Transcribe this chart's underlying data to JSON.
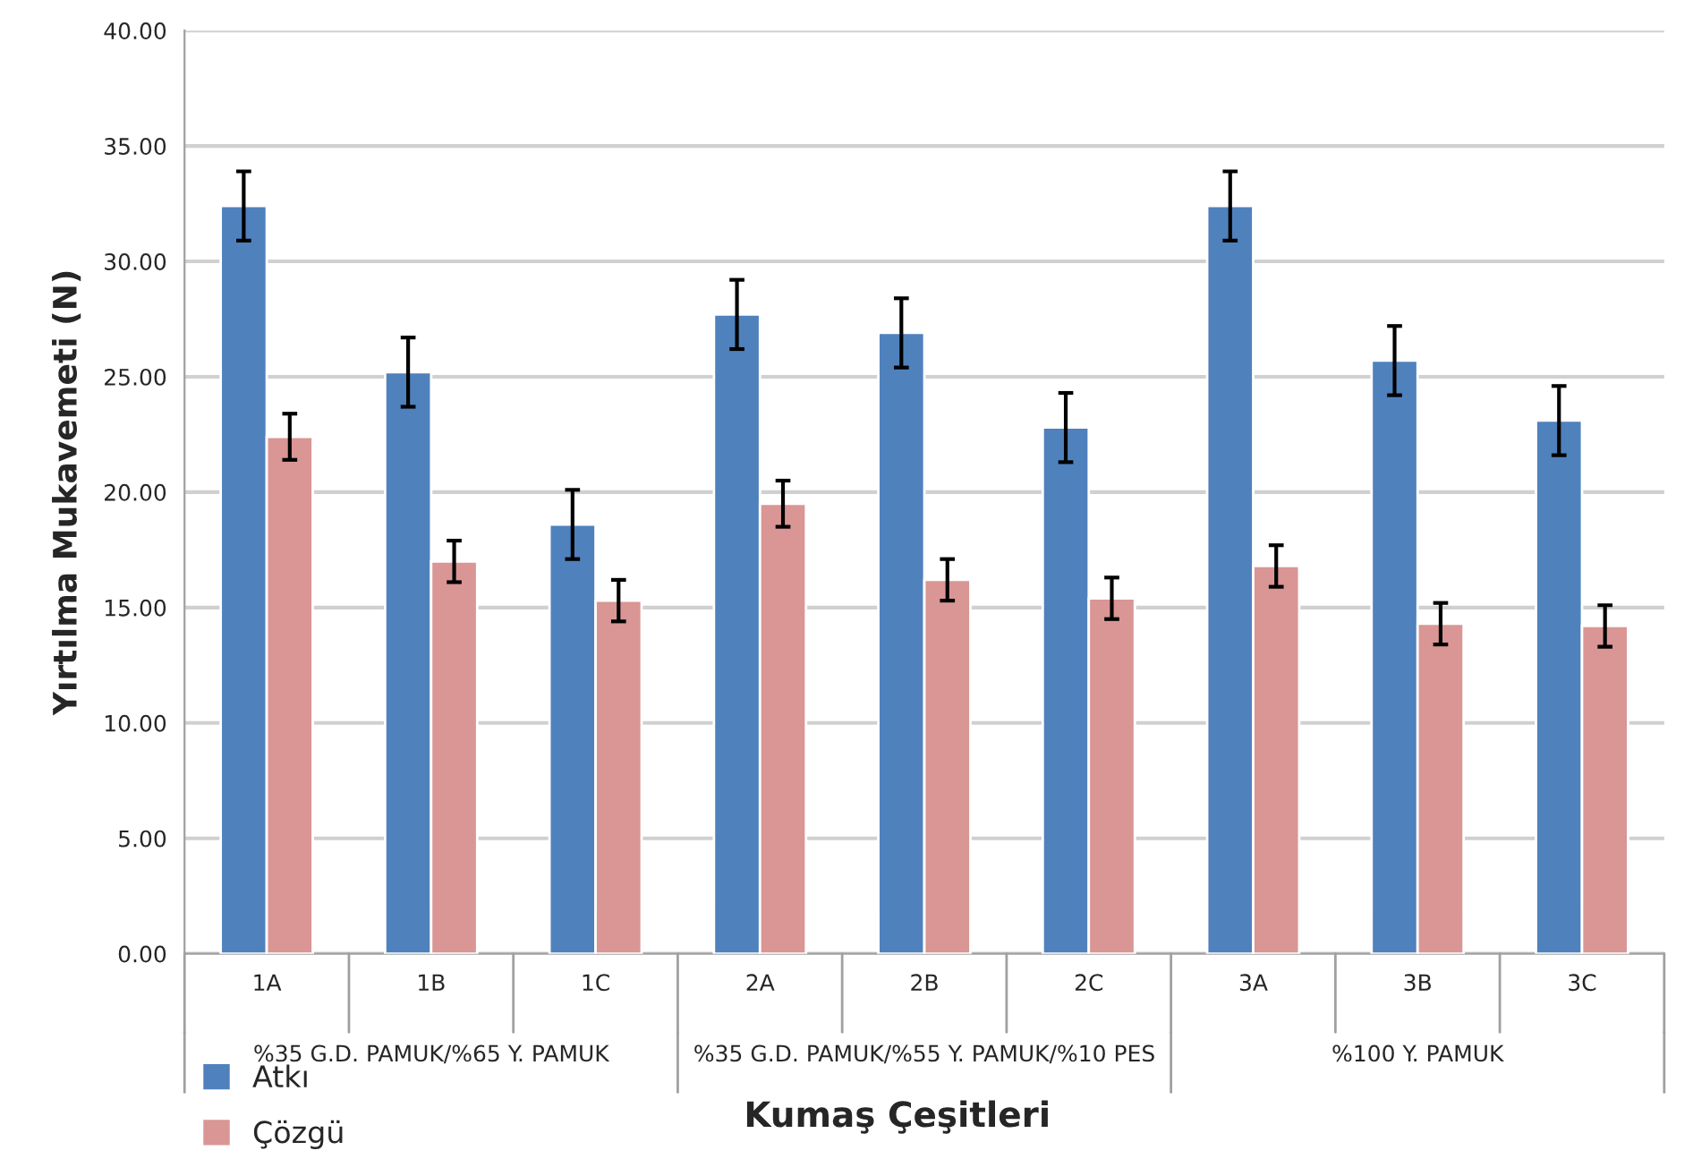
{
  "chart_data": {
    "type": "bar",
    "xlabel": "Kumaş Çeşitleri",
    "ylabel": "Yırtılma Mukavemeti (N)",
    "categories": [
      "1A",
      "1B",
      "1C",
      "2A",
      "2B",
      "2C",
      "3A",
      "3B",
      "3C"
    ],
    "annotations": [
      "%35 G.D. PAMUK/%65 Y. PAMUK",
      "%35 G.D. PAMUK/%55 Y. PAMUK/%10 PES",
      "%100 Y. PAMUK"
    ],
    "series": [
      {
        "name": "Atkı",
        "color": "#4f81bd",
        "values": [
          32.4,
          25.2,
          18.6,
          27.7,
          26.9,
          22.8,
          32.4,
          25.7,
          23.1
        ],
        "errors": [
          1.5,
          1.5,
          1.5,
          1.5,
          1.5,
          1.5,
          1.5,
          1.5,
          1.5
        ]
      },
      {
        "name": "Çözgü",
        "color": "#d99694",
        "values": [
          22.4,
          17.0,
          15.3,
          19.5,
          16.2,
          15.4,
          16.8,
          14.3,
          14.2
        ],
        "errors": [
          1.0,
          0.9,
          0.9,
          1.0,
          0.9,
          0.9,
          0.9,
          0.9,
          0.9
        ]
      }
    ],
    "ylim": [
      0,
      40
    ],
    "yticks": [
      {
        "value": 0,
        "label": "0.00"
      },
      {
        "value": 5,
        "label": "5.00"
      },
      {
        "value": 10,
        "label": "10.00"
      },
      {
        "value": 15,
        "label": "15.00"
      },
      {
        "value": 20,
        "label": "20.00"
      },
      {
        "value": 25,
        "label": "25.00"
      },
      {
        "value": 30,
        "label": "30.00"
      },
      {
        "value": 35,
        "label": "35.00"
      },
      {
        "value": 40,
        "label": "40.00"
      }
    ],
    "grid": "y",
    "legend": "bottom left"
  }
}
